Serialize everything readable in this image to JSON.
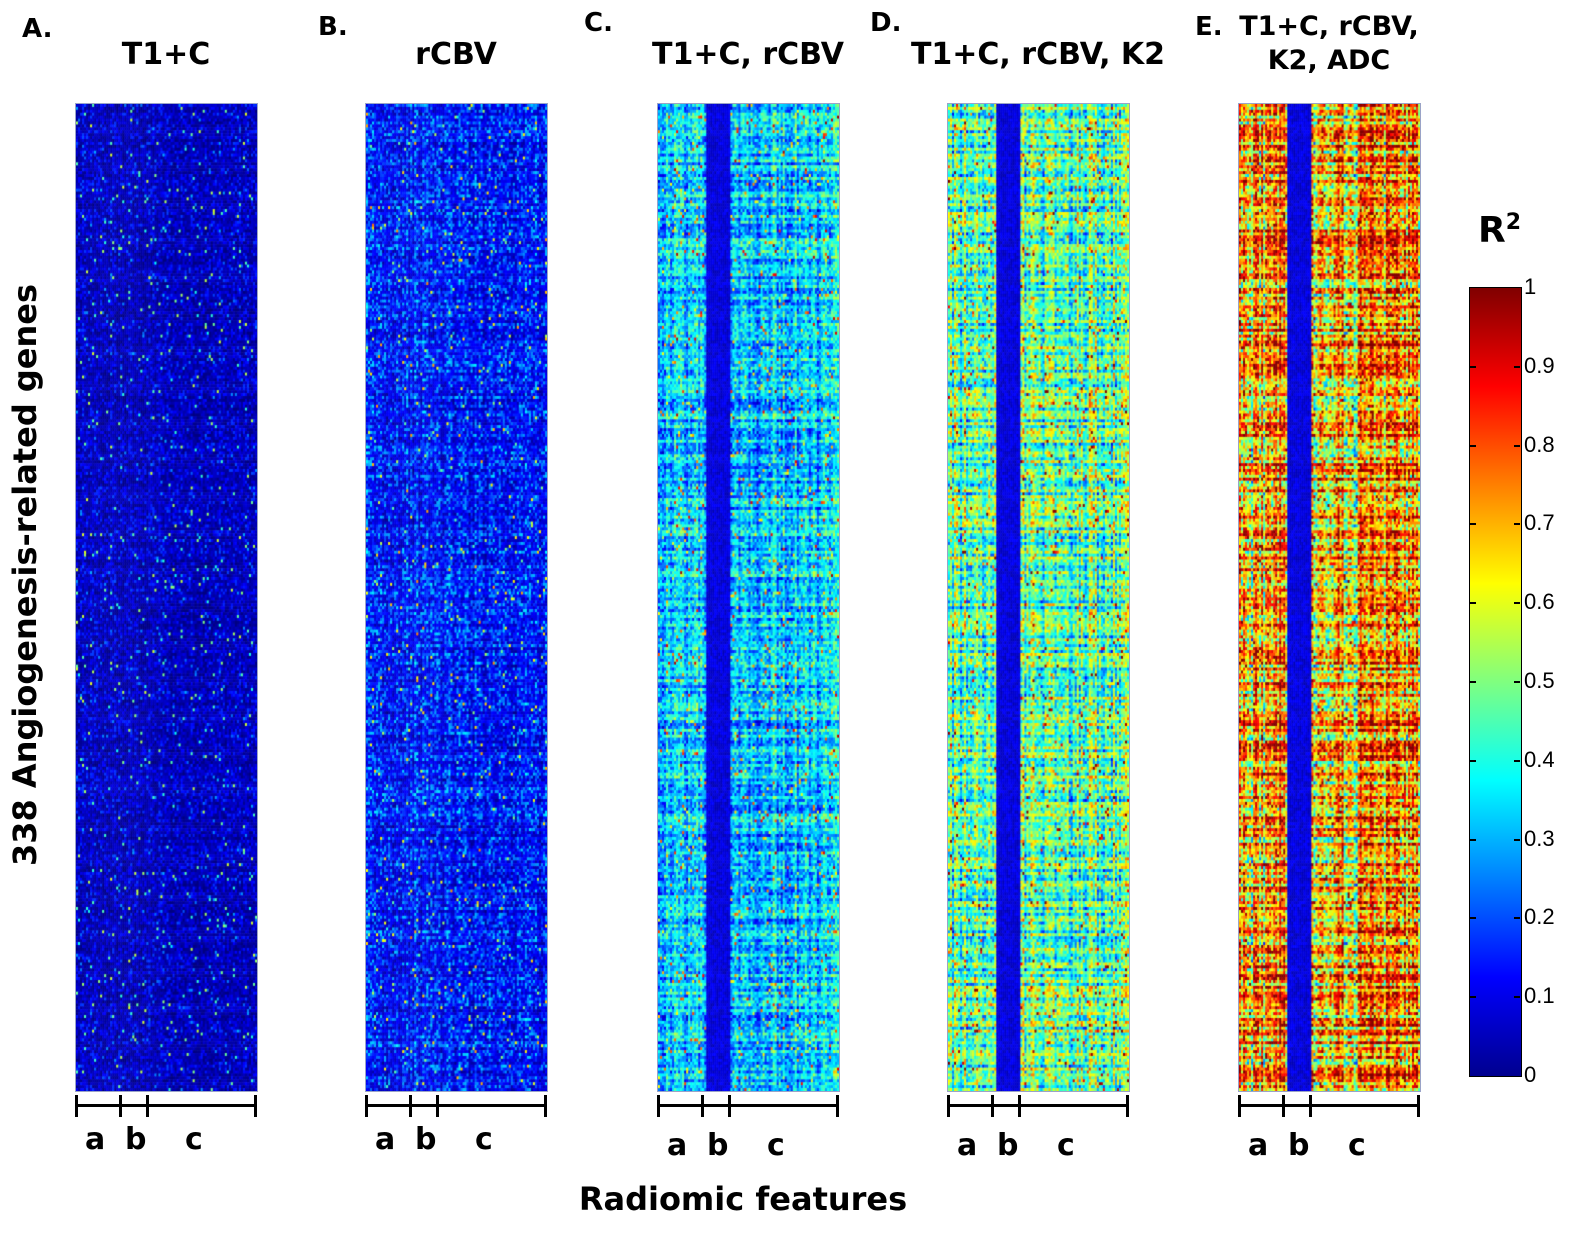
{
  "chart_data": [
    {
      "type": "heatmap",
      "panel_label": "A.",
      "title": "T1+C",
      "column_groups": [
        "a",
        "b",
        "c"
      ]
    },
    {
      "type": "heatmap",
      "panel_label": "B.",
      "title": "rCBV",
      "column_groups": [
        "a",
        "b",
        "c"
      ]
    },
    {
      "type": "heatmap",
      "panel_label": "C.",
      "title": "T1+C, rCBV",
      "column_groups": [
        "a",
        "b",
        "c"
      ]
    },
    {
      "type": "heatmap",
      "panel_label": "D.",
      "title": "T1+C, rCBV, K2",
      "column_groups": [
        "a",
        "b",
        "c"
      ]
    },
    {
      "type": "heatmap",
      "panel_label": "E.",
      "title": "T1+C, rCBV, K2, ADC",
      "column_groups": [
        "a",
        "b",
        "c"
      ]
    }
  ],
  "ylabel": "338 Angiogenesis-related genes",
  "xlabel": "Radiomic features",
  "colorbar": {
    "title": "R",
    "superscript": "2",
    "colormap": "jet",
    "range": [
      0,
      1
    ],
    "ticks": [
      "0",
      "0.1",
      "0.2",
      "0.3",
      "0.4",
      "0.5",
      "0.6",
      "0.7",
      "0.8",
      "0.9",
      "1"
    ]
  }
}
